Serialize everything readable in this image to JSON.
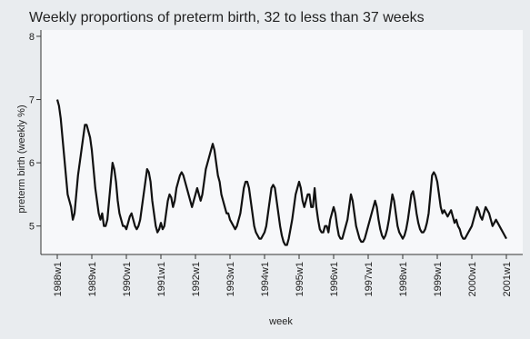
{
  "chart_data": {
    "type": "line",
    "title": "Weekly proportions of preterm birth, 32 to less than 37 weeks",
    "xlabel": "week",
    "ylabel": "preterm birth (weekly %)",
    "ylim": [
      4.55,
      8.1
    ],
    "y_ticks": [
      5,
      6,
      7,
      8
    ],
    "x_ticks": [
      "1988w1",
      "1989w1",
      "1990w1",
      "1991w1",
      "1992w1",
      "1993w1",
      "1994w1",
      "1995w1",
      "1996w1",
      "1997w1",
      "1998w1",
      "1999w1",
      "2000w1",
      "2001w1"
    ],
    "grid": false,
    "legend": "none",
    "colors": {
      "background": "#e9ecef",
      "plot_area": "#f7f8fa",
      "line": "#111111"
    },
    "series": [
      {
        "x": [
          1988.0,
          1988.05,
          1988.1,
          1988.15,
          1988.2,
          1988.25,
          1988.3,
          1988.35,
          1988.4,
          1988.45,
          1988.5,
          1988.55,
          1988.6,
          1988.65,
          1988.7,
          1988.75,
          1988.8,
          1988.85,
          1988.9,
          1988.95,
          1989.0,
          1989.05,
          1989.1,
          1989.15,
          1989.2,
          1989.25,
          1989.3,
          1989.35,
          1989.4,
          1989.45,
          1989.5,
          1989.55,
          1989.6,
          1989.65,
          1989.7,
          1989.75,
          1989.8,
          1989.85,
          1989.9,
          1989.95,
          1990.0,
          1990.05,
          1990.1,
          1990.15,
          1990.2,
          1990.25,
          1990.3,
          1990.35,
          1990.4,
          1990.45,
          1990.5,
          1990.55,
          1990.6,
          1990.65,
          1990.7,
          1990.75,
          1990.8,
          1990.85,
          1990.9,
          1990.95,
          1991.0,
          1991.05,
          1991.1,
          1991.15,
          1991.2,
          1991.25,
          1991.3,
          1991.35,
          1991.4,
          1991.45,
          1991.5,
          1991.55,
          1991.6,
          1991.65,
          1991.7,
          1991.75,
          1991.8,
          1991.85,
          1991.9,
          1991.95,
          1992.0,
          1992.05,
          1992.1,
          1992.15,
          1992.2,
          1992.25,
          1992.3,
          1992.35,
          1992.4,
          1992.45,
          1992.5,
          1992.55,
          1992.6,
          1992.65,
          1992.7,
          1992.75,
          1992.8,
          1992.85,
          1992.9,
          1992.95,
          1993.0,
          1993.05,
          1993.1,
          1993.15,
          1993.2,
          1993.25,
          1993.3,
          1993.35,
          1993.4,
          1993.45,
          1993.5,
          1993.55,
          1993.6,
          1993.65,
          1993.7,
          1993.75,
          1993.8,
          1993.85,
          1993.9,
          1993.95,
          1994.0,
          1994.05,
          1994.1,
          1994.15,
          1994.2,
          1994.25,
          1994.3,
          1994.35,
          1994.4,
          1994.45,
          1994.5,
          1994.55,
          1994.6,
          1994.65,
          1994.7,
          1994.75,
          1994.8,
          1994.85,
          1994.9,
          1994.95,
          1995.0,
          1995.05,
          1995.1,
          1995.15,
          1995.2,
          1995.25,
          1995.3,
          1995.35,
          1995.4,
          1995.45,
          1995.5,
          1995.55,
          1995.6,
          1995.65,
          1995.7,
          1995.75,
          1995.8,
          1995.85,
          1995.9,
          1995.95,
          1996.0,
          1996.05,
          1996.1,
          1996.15,
          1996.2,
          1996.25,
          1996.3,
          1996.35,
          1996.4,
          1996.45,
          1996.5,
          1996.55,
          1996.6,
          1996.65,
          1996.7,
          1996.75,
          1996.8,
          1996.85,
          1996.9,
          1996.95,
          1997.0,
          1997.05,
          1997.1,
          1997.15,
          1997.2,
          1997.25,
          1997.3,
          1997.35,
          1997.4,
          1997.45,
          1997.5,
          1997.55,
          1997.6,
          1997.65,
          1997.7,
          1997.75,
          1997.8,
          1997.85,
          1997.9,
          1997.95,
          1998.0,
          1998.05,
          1998.1,
          1998.15,
          1998.2,
          1998.25,
          1998.3,
          1998.35,
          1998.4,
          1998.45,
          1998.5,
          1998.55,
          1998.6,
          1998.65,
          1998.7,
          1998.75,
          1998.8,
          1998.85,
          1998.9,
          1998.95,
          1999.0,
          1999.05,
          1999.1,
          1999.15,
          1999.2,
          1999.25,
          1999.3,
          1999.35,
          1999.4,
          1999.45,
          1999.5,
          1999.55,
          1999.6,
          1999.65,
          1999.7,
          1999.75,
          1999.8,
          1999.85,
          1999.9,
          1999.95,
          2000.0,
          2000.05,
          2000.1,
          2000.15,
          2000.2,
          2000.25,
          2000.3,
          2000.35,
          2000.4,
          2000.45,
          2000.5,
          2000.55,
          2000.6,
          2000.65,
          2000.7,
          2000.75,
          2000.8,
          2000.85,
          2000.9,
          2000.95,
          2001.0
        ],
        "y": [
          7.0,
          6.9,
          6.7,
          6.4,
          6.1,
          5.8,
          5.5,
          5.4,
          5.3,
          5.1,
          5.2,
          5.5,
          5.8,
          6.0,
          6.2,
          6.4,
          6.6,
          6.6,
          6.5,
          6.4,
          6.2,
          5.9,
          5.6,
          5.4,
          5.2,
          5.1,
          5.2,
          5.0,
          5.0,
          5.1,
          5.4,
          5.7,
          6.0,
          5.9,
          5.7,
          5.4,
          5.2,
          5.1,
          5.0,
          5.0,
          4.95,
          5.05,
          5.15,
          5.2,
          5.1,
          5.0,
          4.95,
          5.0,
          5.1,
          5.3,
          5.5,
          5.7,
          5.9,
          5.85,
          5.7,
          5.4,
          5.2,
          5.0,
          4.9,
          4.95,
          5.05,
          4.95,
          5.0,
          5.2,
          5.4,
          5.5,
          5.45,
          5.3,
          5.4,
          5.6,
          5.7,
          5.8,
          5.85,
          5.8,
          5.7,
          5.6,
          5.5,
          5.4,
          5.3,
          5.4,
          5.5,
          5.6,
          5.5,
          5.4,
          5.5,
          5.7,
          5.9,
          6.0,
          6.1,
          6.2,
          6.3,
          6.2,
          6.0,
          5.8,
          5.7,
          5.5,
          5.4,
          5.3,
          5.2,
          5.2,
          5.1,
          5.05,
          5.0,
          4.95,
          5.0,
          5.1,
          5.2,
          5.4,
          5.6,
          5.7,
          5.7,
          5.6,
          5.4,
          5.2,
          5.0,
          4.9,
          4.85,
          4.8,
          4.8,
          4.85,
          4.9,
          5.0,
          5.2,
          5.4,
          5.6,
          5.65,
          5.6,
          5.4,
          5.2,
          5.0,
          4.85,
          4.75,
          4.7,
          4.7,
          4.8,
          4.95,
          5.1,
          5.3,
          5.5,
          5.6,
          5.7,
          5.6,
          5.4,
          5.3,
          5.4,
          5.5,
          5.5,
          5.3,
          5.3,
          5.6,
          5.3,
          5.1,
          4.95,
          4.9,
          4.9,
          5.0,
          5.0,
          4.9,
          5.1,
          5.2,
          5.3,
          5.2,
          5.0,
          4.85,
          4.8,
          4.8,
          4.9,
          5.0,
          5.1,
          5.3,
          5.5,
          5.4,
          5.2,
          5.0,
          4.9,
          4.8,
          4.75,
          4.75,
          4.8,
          4.9,
          5.0,
          5.1,
          5.2,
          5.3,
          5.4,
          5.3,
          5.1,
          4.95,
          4.85,
          4.8,
          4.85,
          4.95,
          5.1,
          5.3,
          5.5,
          5.4,
          5.2,
          5.0,
          4.9,
          4.85,
          4.8,
          4.85,
          4.95,
          5.1,
          5.3,
          5.5,
          5.55,
          5.4,
          5.2,
          5.05,
          4.95,
          4.9,
          4.9,
          4.95,
          5.05,
          5.2,
          5.5,
          5.8,
          5.85,
          5.8,
          5.7,
          5.5,
          5.3,
          5.2,
          5.25,
          5.2,
          5.15,
          5.2,
          5.25,
          5.15,
          5.05,
          5.1,
          5.0,
          4.95,
          4.85,
          4.8,
          4.8,
          4.85,
          4.9,
          4.95,
          5.0,
          5.1,
          5.2,
          5.3,
          5.25,
          5.15,
          5.1,
          5.2,
          5.3,
          5.25,
          5.2,
          5.1,
          5.0,
          5.05,
          5.1,
          5.05,
          5.0,
          4.95,
          4.9,
          4.85,
          4.8
        ]
      }
    ]
  }
}
